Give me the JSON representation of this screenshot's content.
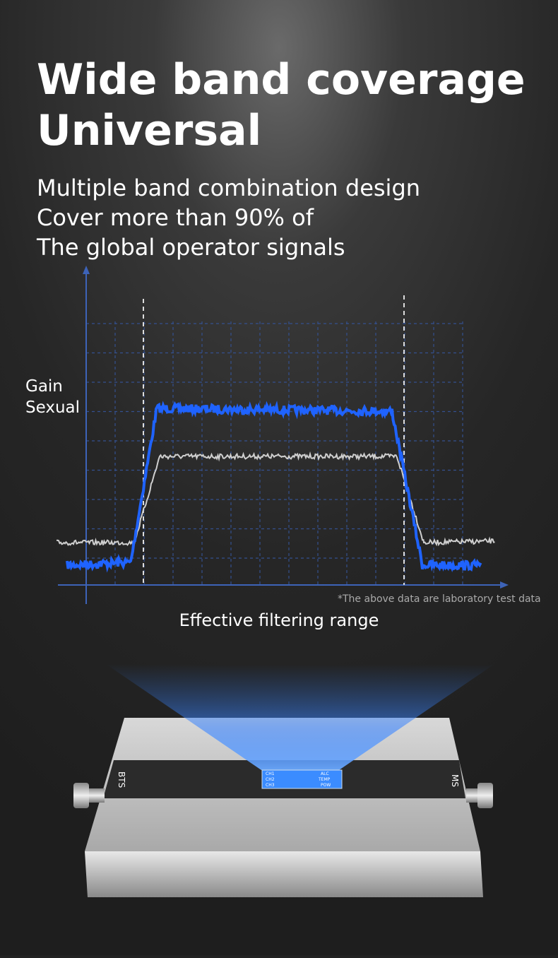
{
  "header": {
    "title_lines": [
      "Wide band coverage",
      "Universal"
    ],
    "subtitle_lines": [
      "Multiple band combination design",
      "Cover more than 90% of",
      "The global operator signals"
    ]
  },
  "graph": {
    "y_label_lines": [
      "Gain",
      "Sexual"
    ],
    "note": "*The above data are laboratory test data",
    "caption": "Effective filtering range"
  },
  "device": {
    "left_port": "BTS",
    "right_port": "MS",
    "display_rows": [
      "CH1",
      "CH2",
      "CH3"
    ],
    "display_flags": [
      "ALC",
      "TEMP",
      "POW"
    ]
  }
}
